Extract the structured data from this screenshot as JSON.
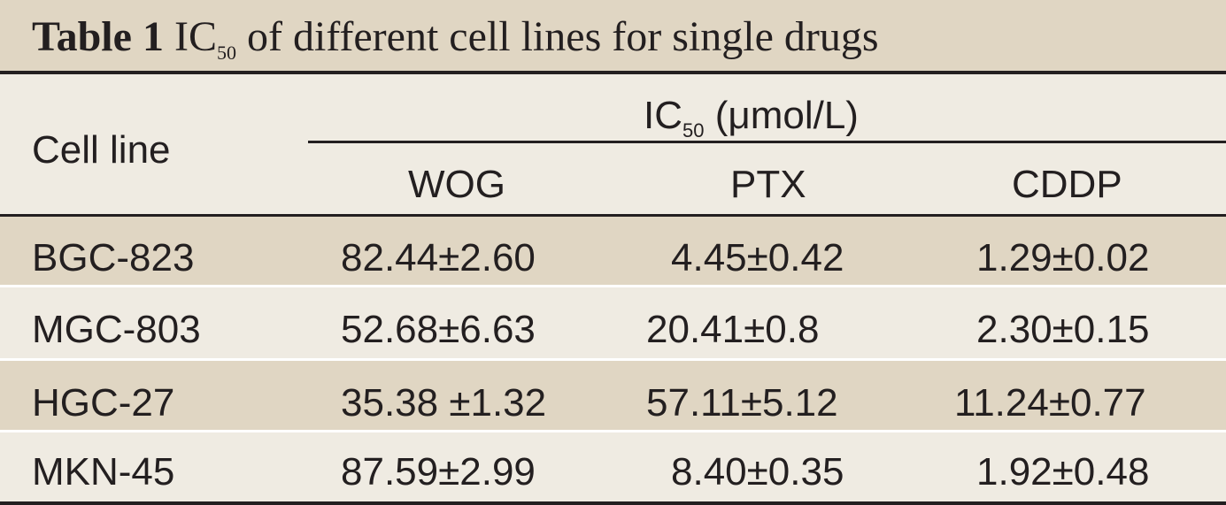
{
  "title": {
    "label": "Table 1",
    "text_prefix": "IC",
    "text_sub": "50",
    "text_suffix": " of different cell lines for single drugs"
  },
  "header": {
    "row_label": "Cell line",
    "group_prefix": "IC",
    "group_sub": "50",
    "group_suffix": " (μmol/L)",
    "columns": [
      "WOG",
      "PTX",
      "CDDP"
    ]
  },
  "rows": [
    {
      "cell_line": "BGC-823",
      "wog": "82.44±2.60",
      "ptx": "4.45±0.42",
      "cddp": "1.29±0.02"
    },
    {
      "cell_line": "MGC-803",
      "wog": "52.68±6.63",
      "ptx": "20.41±0.8",
      "cddp": "2.30±0.15"
    },
    {
      "cell_line": "HGC-27",
      "wog": "35.38 ±1.32",
      "ptx": "57.11±5.12",
      "cddp": "11.24±0.77"
    },
    {
      "cell_line": "MKN-45",
      "wog": "87.59±2.99",
      "ptx": "8.40±0.35",
      "cddp": "1.92±0.48"
    }
  ],
  "colors": {
    "shade": "#e0d6c3",
    "light": "#efebe2",
    "text": "#231f20"
  }
}
